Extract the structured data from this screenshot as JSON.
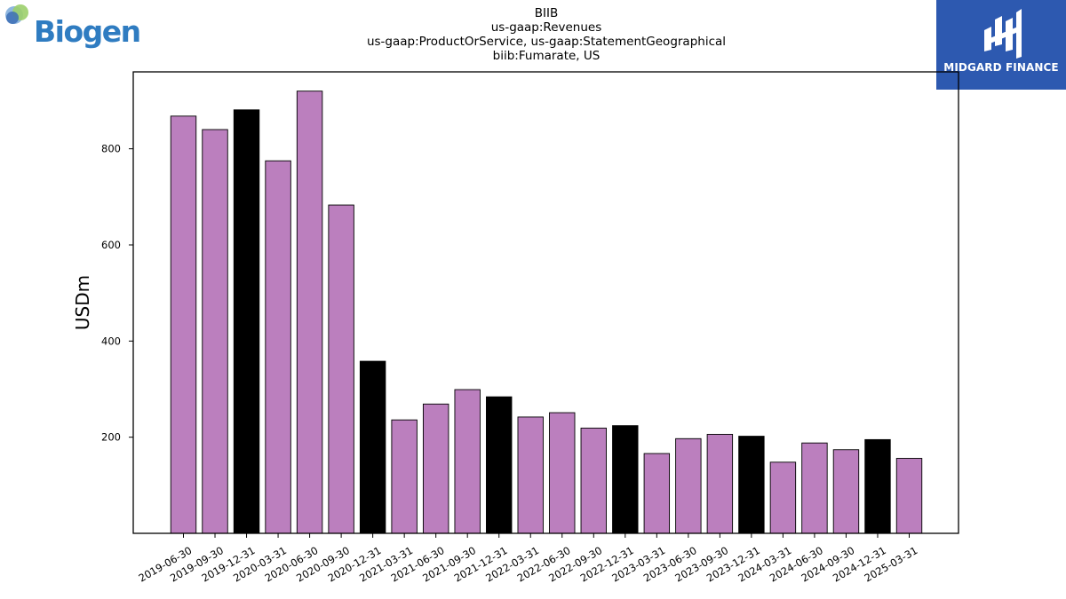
{
  "logos": {
    "left_brand": "Biogen",
    "right_brand": "MIDGARD FINANCE"
  },
  "colors": {
    "bar_default": "#bb7fbe",
    "bar_highlight": "#000000",
    "midgard_bg": "#2d59b0",
    "biogen_blue": "#2f7cc1"
  },
  "chart_data": {
    "type": "bar",
    "title_lines": [
      "BIIB",
      "us-gaap:Revenues",
      "us-gaap:ProductOrService, us-gaap:StatementGeographical",
      "biib:Fumarate, US"
    ],
    "xlabel": "",
    "ylabel": "USDm",
    "ylim": [
      0,
      960
    ],
    "yticks": [
      200,
      400,
      600,
      800
    ],
    "grid": false,
    "categories": [
      "2019-06-30",
      "2019-09-30",
      "2019-12-31",
      "2020-03-31",
      "2020-06-30",
      "2020-09-30",
      "2020-12-31",
      "2021-03-31",
      "2021-06-30",
      "2021-09-30",
      "2021-12-31",
      "2022-03-31",
      "2022-06-30",
      "2022-09-30",
      "2022-12-31",
      "2023-03-31",
      "2023-06-30",
      "2023-09-30",
      "2023-12-31",
      "2024-03-31",
      "2024-06-30",
      "2024-09-30",
      "2024-12-31",
      "2025-03-31"
    ],
    "values": [
      868,
      840,
      881,
      775,
      920,
      683,
      358,
      236,
      269,
      299,
      284,
      242,
      251,
      219,
      224,
      166,
      197,
      206,
      202,
      148,
      188,
      174,
      195,
      156
    ],
    "highlight": [
      false,
      false,
      true,
      false,
      false,
      false,
      true,
      false,
      false,
      false,
      true,
      false,
      false,
      false,
      true,
      false,
      false,
      false,
      true,
      false,
      false,
      false,
      true,
      false
    ]
  }
}
